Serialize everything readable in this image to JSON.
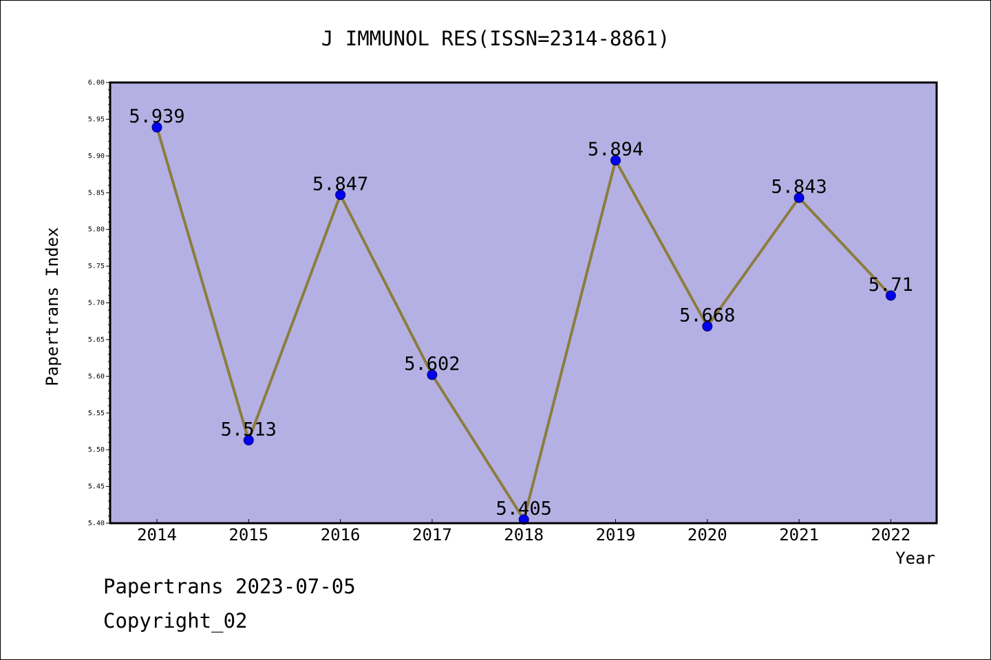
{
  "chart_data": {
    "type": "line",
    "title": "J IMMUNOL RES(ISSN=2314-8861)",
    "xlabel": "Year",
    "ylabel": "Papertrans Index",
    "x": [
      "2014",
      "2015",
      "2016",
      "2017",
      "2018",
      "2019",
      "2020",
      "2021",
      "2022"
    ],
    "series": [
      {
        "values": [
          5.939,
          5.513,
          5.847,
          5.602,
          5.405,
          5.894,
          5.668,
          5.843,
          5.71
        ],
        "labels": [
          "5.939",
          "5.513",
          "5.847",
          "5.602",
          "5.405",
          "5.894",
          "5.668",
          "5.843",
          "5.71"
        ]
      }
    ],
    "ylim": [
      5.4,
      6.0
    ],
    "yticks": [
      "5.40",
      "5.45",
      "5.50",
      "5.55",
      "5.60",
      "5.65",
      "5.70",
      "5.75",
      "5.80",
      "5.85",
      "5.90",
      "5.95",
      "6.00"
    ],
    "grid": false,
    "legend": "none",
    "colors": {
      "plot_bg": "#b5b0e3",
      "line": "#8b7d3e",
      "marker": "#0000ee",
      "frame": "#000000"
    }
  },
  "footer": {
    "line1": "Papertrans 2023-07-05",
    "line2": "Copyright_02"
  }
}
